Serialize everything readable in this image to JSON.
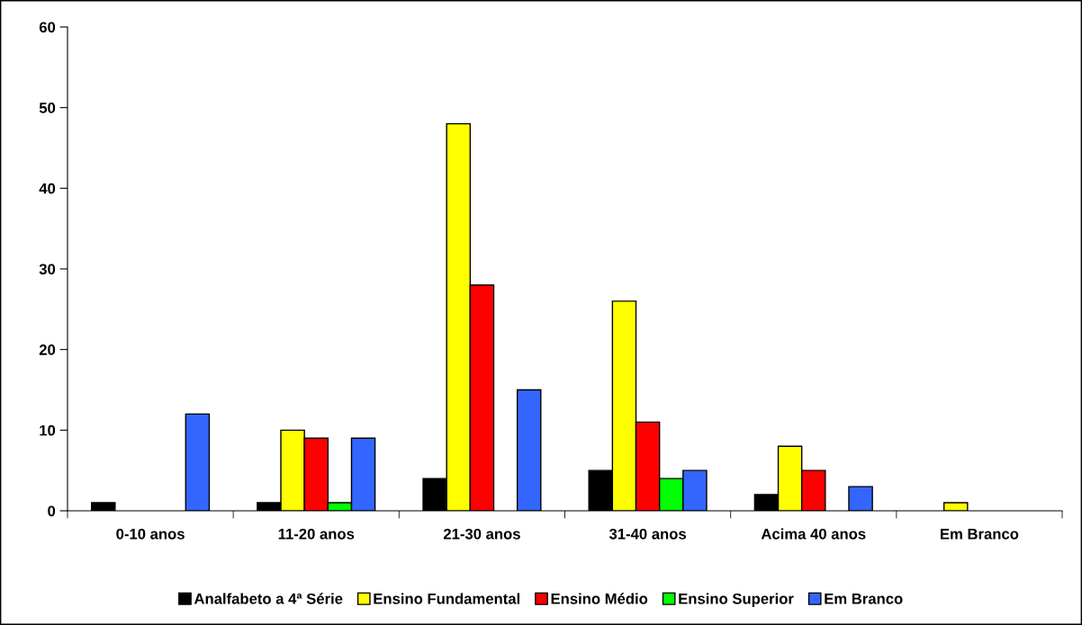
{
  "chart_data": {
    "type": "bar",
    "categories": [
      "0-10 anos",
      "11-20 anos",
      "21-30 anos",
      "31-40 anos",
      "Acima 40 anos",
      "Em Branco"
    ],
    "series": [
      {
        "name": "Analfabeto a 4ª Série",
        "color": "#000000",
        "values": [
          1,
          1,
          4,
          5,
          2,
          0
        ]
      },
      {
        "name": "Ensino Fundamental",
        "color": "#ffff00",
        "values": [
          0,
          10,
          48,
          26,
          8,
          1
        ]
      },
      {
        "name": "Ensino Médio",
        "color": "#ff0000",
        "values": [
          0,
          9,
          28,
          11,
          5,
          0
        ]
      },
      {
        "name": "Ensino Superior",
        "color": "#00ff00",
        "values": [
          0,
          1,
          0,
          4,
          0,
          0
        ]
      },
      {
        "name": "Em Branco",
        "color": "#3366ff",
        "values": [
          12,
          9,
          15,
          5,
          3,
          0
        ]
      }
    ],
    "ylim": [
      0,
      60
    ],
    "yticks": [
      0,
      10,
      20,
      30,
      40,
      50,
      60
    ],
    "grid": false,
    "legend": "bottom"
  }
}
